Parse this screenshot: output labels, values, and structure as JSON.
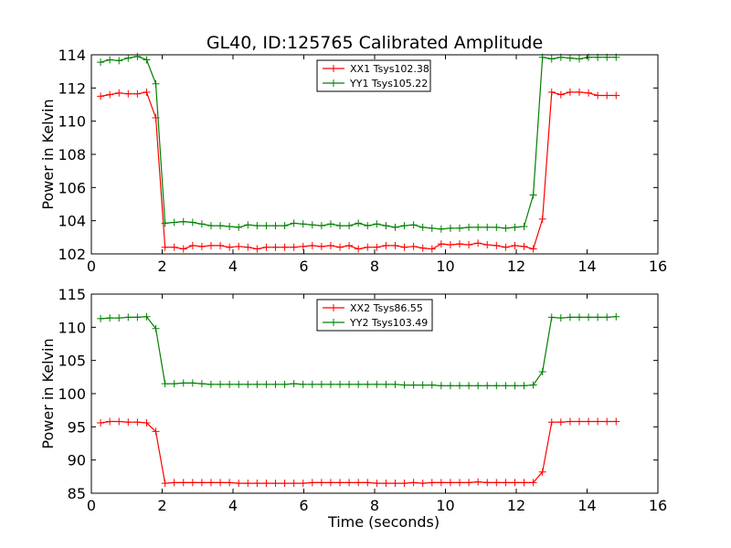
{
  "title": "GL40, ID:125765 Calibrated Amplitude",
  "chart_data": [
    {
      "type": "line",
      "xlabel": "",
      "ylabel": "Power in Kelvin",
      "xlim": [
        0,
        16
      ],
      "ylim": [
        102,
        114
      ],
      "xticks": [
        "0",
        "2",
        "4",
        "6",
        "8",
        "10",
        "12",
        "14",
        "16"
      ],
      "yticks": [
        "102",
        "104",
        "106",
        "108",
        "110",
        "112",
        "114"
      ],
      "legend": "top-center",
      "grid": false,
      "x": [
        0.26,
        0.52,
        0.78,
        1.04,
        1.3,
        1.56,
        1.82,
        2.08,
        2.34,
        2.6,
        2.86,
        3.12,
        3.38,
        3.64,
        3.9,
        4.16,
        4.42,
        4.68,
        4.94,
        5.2,
        5.46,
        5.72,
        5.98,
        6.24,
        6.5,
        6.76,
        7.02,
        7.28,
        7.54,
        7.8,
        8.06,
        8.32,
        8.58,
        8.84,
        9.1,
        9.36,
        9.62,
        9.88,
        10.14,
        10.4,
        10.66,
        10.92,
        11.18,
        11.44,
        11.7,
        11.96,
        12.22,
        12.48,
        12.74,
        13.0,
        13.26,
        13.52,
        13.78,
        14.04,
        14.3,
        14.56,
        14.82
      ],
      "series": [
        {
          "name": "XX1 Tsys102.38",
          "color": "#ff0000",
          "values": [
            111.5,
            111.6,
            111.7,
            111.65,
            111.65,
            111.75,
            110.2,
            102.4,
            102.4,
            102.3,
            102.5,
            102.45,
            102.5,
            102.5,
            102.4,
            102.45,
            102.4,
            102.3,
            102.4,
            102.4,
            102.4,
            102.4,
            102.45,
            102.5,
            102.45,
            102.5,
            102.4,
            102.5,
            102.3,
            102.4,
            102.4,
            102.5,
            102.5,
            102.4,
            102.45,
            102.35,
            102.3,
            102.6,
            102.55,
            102.6,
            102.55,
            102.65,
            102.55,
            102.5,
            102.4,
            102.5,
            102.45,
            102.3,
            104.1,
            111.75,
            111.6,
            111.75,
            111.75,
            111.7,
            111.55,
            111.55,
            111.55
          ]
        },
        {
          "name": "YY1 Tsys105.22",
          "color": "#008000",
          "values": [
            113.55,
            113.7,
            113.65,
            113.8,
            113.9,
            113.7,
            112.25,
            103.85,
            103.9,
            103.95,
            103.9,
            103.8,
            103.7,
            103.7,
            103.65,
            103.6,
            103.75,
            103.7,
            103.7,
            103.7,
            103.7,
            103.85,
            103.8,
            103.75,
            103.7,
            103.8,
            103.7,
            103.7,
            103.85,
            103.7,
            103.8,
            103.7,
            103.6,
            103.7,
            103.75,
            103.6,
            103.55,
            103.5,
            103.55,
            103.55,
            103.6,
            103.6,
            103.6,
            103.6,
            103.55,
            103.6,
            103.65,
            105.55,
            113.85,
            113.75,
            113.85,
            113.8,
            113.75,
            113.85,
            113.85,
            113.85,
            113.85
          ]
        }
      ]
    },
    {
      "type": "line",
      "xlabel": "Time (seconds)",
      "ylabel": "Power in Kelvin",
      "xlim": [
        0,
        16
      ],
      "ylim": [
        85,
        115
      ],
      "xticks": [
        "0",
        "2",
        "4",
        "6",
        "8",
        "10",
        "12",
        "14",
        "16"
      ],
      "yticks": [
        "85",
        "90",
        "95",
        "100",
        "105",
        "110",
        "115"
      ],
      "legend": "top-center",
      "grid": false,
      "x": [
        0.26,
        0.52,
        0.78,
        1.04,
        1.3,
        1.56,
        1.82,
        2.08,
        2.34,
        2.6,
        2.86,
        3.12,
        3.38,
        3.64,
        3.9,
        4.16,
        4.42,
        4.68,
        4.94,
        5.2,
        5.46,
        5.72,
        5.98,
        6.24,
        6.5,
        6.76,
        7.02,
        7.28,
        7.54,
        7.8,
        8.06,
        8.32,
        8.58,
        8.84,
        9.1,
        9.36,
        9.62,
        9.88,
        10.14,
        10.4,
        10.66,
        10.92,
        11.18,
        11.44,
        11.7,
        11.96,
        12.22,
        12.48,
        12.74,
        13.0,
        13.26,
        13.52,
        13.78,
        14.04,
        14.3,
        14.56,
        14.82
      ],
      "series": [
        {
          "name": "XX2 Tsys86.55",
          "color": "#ff0000",
          "values": [
            95.6,
            95.8,
            95.8,
            95.7,
            95.7,
            95.6,
            94.3,
            86.5,
            86.6,
            86.6,
            86.6,
            86.6,
            86.6,
            86.6,
            86.6,
            86.5,
            86.5,
            86.5,
            86.5,
            86.5,
            86.5,
            86.5,
            86.5,
            86.6,
            86.6,
            86.6,
            86.6,
            86.6,
            86.6,
            86.6,
            86.5,
            86.5,
            86.5,
            86.5,
            86.6,
            86.5,
            86.6,
            86.6,
            86.6,
            86.6,
            86.6,
            86.7,
            86.6,
            86.6,
            86.6,
            86.6,
            86.6,
            86.6,
            88.2,
            95.7,
            95.7,
            95.8,
            95.8,
            95.8,
            95.8,
            95.8,
            95.8
          ]
        },
        {
          "name": "YY2 Tsys103.49",
          "color": "#008000",
          "values": [
            111.3,
            111.4,
            111.4,
            111.5,
            111.5,
            111.6,
            109.8,
            101.5,
            101.5,
            101.6,
            101.6,
            101.5,
            101.4,
            101.4,
            101.4,
            101.4,
            101.4,
            101.4,
            101.4,
            101.4,
            101.4,
            101.5,
            101.4,
            101.4,
            101.4,
            101.4,
            101.4,
            101.4,
            101.4,
            101.4,
            101.4,
            101.4,
            101.4,
            101.3,
            101.3,
            101.3,
            101.3,
            101.2,
            101.2,
            101.2,
            101.2,
            101.2,
            101.2,
            101.2,
            101.2,
            101.2,
            101.2,
            101.3,
            103.3,
            111.5,
            111.4,
            111.5,
            111.5,
            111.5,
            111.5,
            111.5,
            111.6
          ]
        }
      ]
    }
  ]
}
